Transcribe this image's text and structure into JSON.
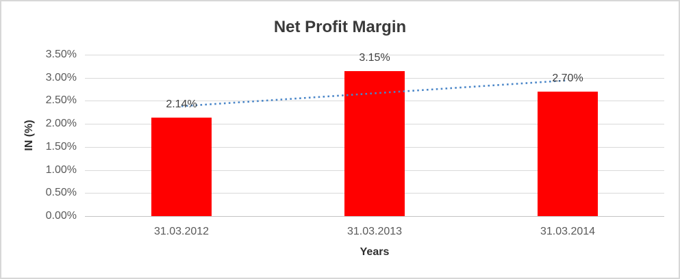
{
  "chart_data": {
    "type": "bar",
    "title": "Net Profit Margin",
    "xlabel": "Years",
    "ylabel": "IN (%)",
    "categories": [
      "31.03.2012",
      "31.03.2013",
      "31.03.2014"
    ],
    "values": [
      2.14,
      3.15,
      2.7
    ],
    "data_labels": [
      "2.14%",
      "3.15%",
      "2.70%"
    ],
    "y_ticks": [
      {
        "value": 0.0,
        "label": "0.00%"
      },
      {
        "value": 0.5,
        "label": "0.50%"
      },
      {
        "value": 1.0,
        "label": "1.00%"
      },
      {
        "value": 1.5,
        "label": "1.50%"
      },
      {
        "value": 2.0,
        "label": "2.00%"
      },
      {
        "value": 2.5,
        "label": "2.50%"
      },
      {
        "value": 3.0,
        "label": "3.00%"
      },
      {
        "value": 3.5,
        "label": "3.50%"
      }
    ],
    "ylim": [
      0,
      3.5
    ],
    "grid": true,
    "legend": "none",
    "trendline": {
      "type": "linear",
      "style": "dotted"
    },
    "colors": {
      "bar": "#ff0000",
      "trendline": "#4a86c8",
      "gridline": "#d9d9d9",
      "baseline": "#c3c3c3",
      "tick_text": "#595959",
      "data_label_text": "#404040",
      "title_text": "#3a3a3a",
      "border": "#d7d7d7"
    }
  }
}
